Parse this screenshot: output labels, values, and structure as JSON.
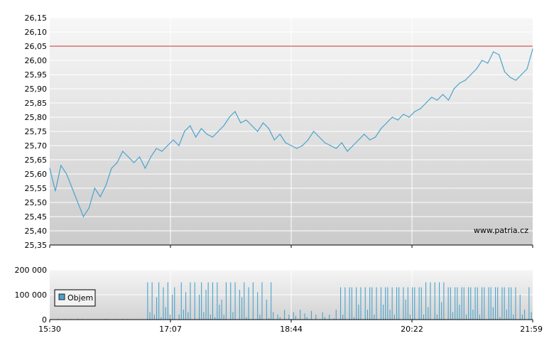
{
  "watermark": "www.patria.cz",
  "chart_data": [
    {
      "type": "line",
      "title": "",
      "xlabel": "",
      "ylabel": "",
      "x_ticks": [
        "15:30",
        "17:07",
        "18:44",
        "20:22",
        "21:59"
      ],
      "y_ticks": [
        "25,35",
        "25,40",
        "25,45",
        "25,50",
        "25,55",
        "25,60",
        "25,65",
        "25,70",
        "25,75",
        "25,80",
        "25,85",
        "25,90",
        "25,95",
        "26,00",
        "26,05",
        "26,10",
        "26,15"
      ],
      "ylim": [
        25.35,
        26.15
      ],
      "grid": true,
      "reference_line": {
        "value": 26.05,
        "color": "#cc3333"
      },
      "line_color": "#4aa3cc",
      "series": [
        {
          "values": [
            25.62,
            25.54,
            25.63,
            25.6,
            25.55,
            25.5,
            25.45,
            25.48,
            25.55,
            25.52,
            25.56,
            25.62,
            25.64,
            25.68,
            25.66,
            25.64,
            25.66,
            25.62,
            25.66,
            25.69,
            25.68,
            25.7,
            25.72,
            25.7,
            25.75,
            25.77,
            25.73,
            25.76,
            25.74,
            25.73,
            25.75,
            25.77,
            25.8,
            25.82,
            25.78,
            25.79,
            25.77,
            25.75,
            25.78,
            25.76,
            25.72,
            25.74,
            25.71,
            25.7,
            25.69,
            25.7,
            25.72,
            25.75,
            25.73,
            25.71,
            25.7,
            25.69,
            25.71,
            25.68,
            25.7,
            25.72,
            25.74,
            25.72,
            25.73,
            25.76,
            25.78,
            25.8,
            25.79,
            25.81,
            25.8,
            25.82,
            25.83,
            25.85,
            25.87,
            25.86,
            25.88,
            25.86,
            25.9,
            25.92,
            25.93,
            25.95,
            25.97,
            26.0,
            25.99,
            26.03,
            26.02,
            25.96,
            25.94,
            25.93,
            25.95,
            25.97,
            26.04
          ]
        }
      ]
    },
    {
      "type": "bar",
      "title": "",
      "xlabel": "",
      "ylabel": "",
      "x_ticks": [
        "15:30",
        "17:07",
        "18:44",
        "20:22",
        "21:59"
      ],
      "y_ticks": [
        "0",
        "100 000",
        "200 000"
      ],
      "ylim": [
        0,
        200000
      ],
      "grid": true,
      "bar_color": "#4aa3cc",
      "legend": {
        "position": "top-left",
        "items": [
          "Objem"
        ]
      },
      "series": [
        {
          "name": "Objem",
          "values": [
            2000,
            1500,
            0,
            3000,
            0,
            1000,
            2500,
            0,
            1500,
            2000,
            0,
            1000,
            3000,
            0,
            2500,
            1000,
            0,
            2000,
            0,
            1500,
            0,
            2000,
            1000,
            0,
            2500,
            3000,
            0,
            1500,
            0,
            2000,
            1000,
            0,
            2500,
            0,
            2000,
            0,
            1500,
            0,
            2000,
            0,
            0,
            1000,
            0,
            150000,
            30000,
            150000,
            20000,
            90000,
            150000,
            10000,
            130000,
            50000,
            150000,
            20000,
            100000,
            130000,
            0,
            20000,
            150000,
            40000,
            110000,
            30000,
            150000,
            0,
            150000,
            0,
            100000,
            150000,
            30000,
            120000,
            150000,
            20000,
            150000,
            10000,
            150000,
            60000,
            80000,
            20000,
            150000,
            0,
            150000,
            30000,
            150000,
            0,
            120000,
            90000,
            150000,
            10000,
            130000,
            0,
            150000,
            0,
            110000,
            20000,
            150000,
            0,
            80000,
            5000,
            150000,
            30000,
            0,
            20000,
            10000,
            0,
            40000,
            0,
            20000,
            0,
            30000,
            15000,
            0,
            40000,
            0,
            25000,
            10000,
            0,
            35000,
            0,
            20000,
            0,
            0,
            30000,
            10000,
            0,
            20000,
            0,
            5000,
            40000,
            0,
            130000,
            20000,
            130000,
            0,
            130000,
            130000,
            10000,
            130000,
            60000,
            130000,
            0,
            130000,
            40000,
            130000,
            130000,
            20000,
            130000,
            0,
            130000,
            60000,
            130000,
            130000,
            40000,
            130000,
            20000,
            130000,
            130000,
            0,
            130000,
            80000,
            130000,
            20000,
            130000,
            130000,
            0,
            130000,
            130000,
            20000,
            150000,
            50000,
            150000,
            0,
            150000,
            20000,
            150000,
            70000,
            150000,
            0,
            130000,
            130000,
            30000,
            130000,
            130000,
            60000,
            130000,
            130000,
            20000,
            130000,
            130000,
            40000,
            130000,
            130000,
            20000,
            130000,
            130000,
            0,
            130000,
            130000,
            50000,
            130000,
            130000,
            10000,
            130000,
            130000,
            40000,
            130000,
            130000,
            20000,
            130000,
            0,
            100000,
            20000,
            40000,
            0,
            130000,
            30000
          ]
        }
      ]
    }
  ]
}
